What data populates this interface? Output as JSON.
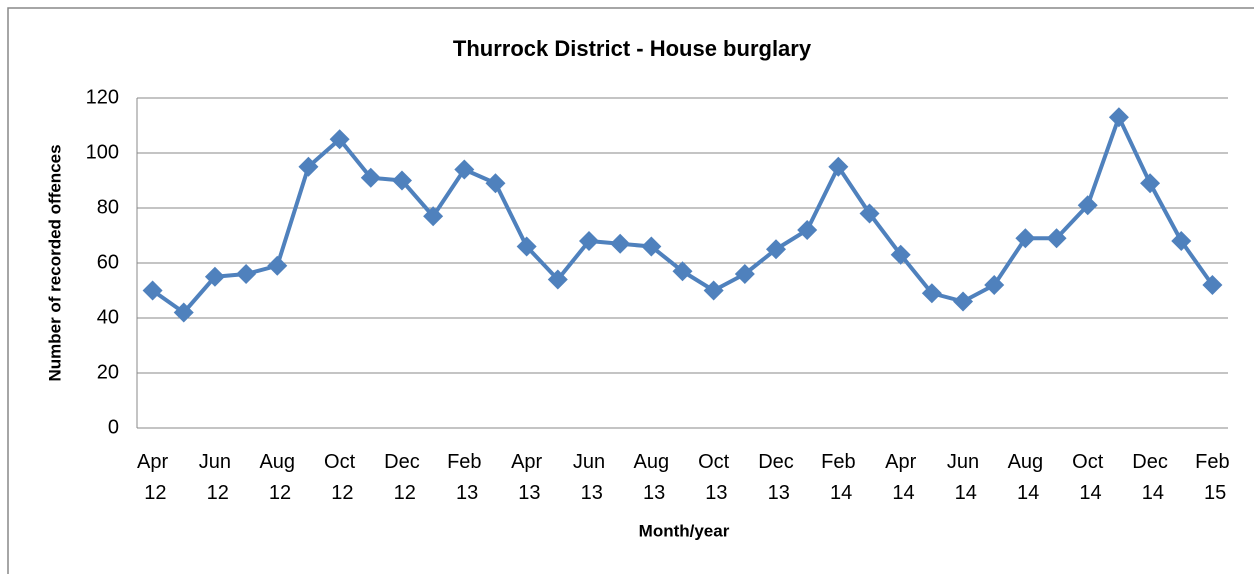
{
  "chart_data": {
    "type": "line",
    "title": "Thurrock District - House burglary",
    "x_label": "Month/year",
    "y_label": "Number of recorded offences",
    "categories": [
      "Apr 12",
      null,
      "Jun 12",
      null,
      "Aug 12",
      null,
      "Oct 12",
      null,
      "Dec 12",
      null,
      "Feb 13",
      null,
      "Apr 13",
      null,
      "Jun 13",
      null,
      "Aug 13",
      null,
      "Oct 13",
      null,
      "Dec 13",
      null,
      "Feb 14",
      null,
      "Apr 14",
      null,
      "Jun 14",
      null,
      "Aug 14",
      null,
      "Oct 14",
      null,
      "Dec 14",
      null,
      "Feb 15"
    ],
    "series": [
      {
        "name": "House burglary",
        "color": "#4f81bd",
        "values": [
          50,
          42,
          55,
          56,
          59,
          95,
          105,
          91,
          90,
          77,
          94,
          89,
          66,
          54,
          68,
          67,
          66,
          57,
          50,
          56,
          65,
          72,
          95,
          78,
          63,
          49,
          46,
          52,
          69,
          69,
          81,
          113,
          89,
          68,
          52
        ]
      }
    ],
    "ylim": [
      0,
      120
    ],
    "yticks": [
      0,
      20,
      40,
      60,
      80,
      100,
      120
    ],
    "grid": true
  }
}
